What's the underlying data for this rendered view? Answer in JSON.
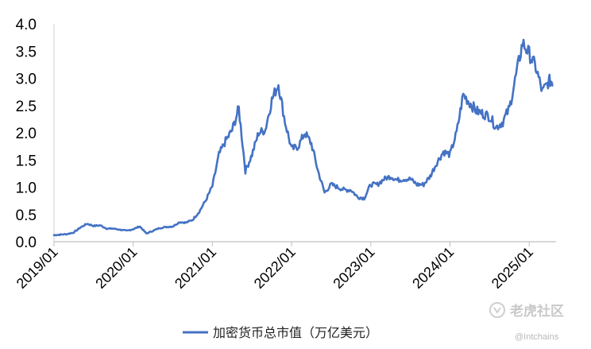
{
  "chart_data": {
    "type": "line",
    "title": "",
    "xlabel": "",
    "ylabel": "",
    "ylim": [
      0,
      4.0
    ],
    "yticks": [
      "0.0",
      "0.5",
      "1.0",
      "1.5",
      "2.0",
      "2.5",
      "3.0",
      "3.5",
      "4.0"
    ],
    "xticks": [
      "2019/01",
      "2020/01",
      "2021/01",
      "2022/01",
      "2023/01",
      "2024/01",
      "2025/01"
    ],
    "grid": false,
    "legend_position": "bottom",
    "series": [
      {
        "name": "加密货币总市值（万亿美元）",
        "color": "#4472c4",
        "x": [
          "2019-01",
          "2019-02",
          "2019-03",
          "2019-04",
          "2019-05",
          "2019-06",
          "2019-07",
          "2019-08",
          "2019-09",
          "2019-10",
          "2019-11",
          "2019-12",
          "2020-01",
          "2020-02",
          "2020-03",
          "2020-04",
          "2020-05",
          "2020-06",
          "2020-07",
          "2020-08",
          "2020-09",
          "2020-10",
          "2020-11",
          "2020-12",
          "2021-01",
          "2021-02",
          "2021-03",
          "2021-04",
          "2021-05",
          "2021-06",
          "2021-07",
          "2021-08",
          "2021-09",
          "2021-10",
          "2021-11",
          "2021-12",
          "2022-01",
          "2022-02",
          "2022-03",
          "2022-04",
          "2022-05",
          "2022-06",
          "2022-07",
          "2022-08",
          "2022-09",
          "2022-10",
          "2022-11",
          "2022-12",
          "2023-01",
          "2023-02",
          "2023-03",
          "2023-04",
          "2023-05",
          "2023-06",
          "2023-07",
          "2023-08",
          "2023-09",
          "2023-10",
          "2023-11",
          "2023-12",
          "2024-01",
          "2024-02",
          "2024-03",
          "2024-04",
          "2024-05",
          "2024-06",
          "2024-07",
          "2024-08",
          "2024-09",
          "2024-10",
          "2024-11",
          "2024-12",
          "2025-01",
          "2025-02",
          "2025-03",
          "2025-04"
        ],
        "values": [
          0.12,
          0.13,
          0.14,
          0.17,
          0.26,
          0.33,
          0.29,
          0.3,
          0.24,
          0.24,
          0.22,
          0.2,
          0.23,
          0.28,
          0.15,
          0.2,
          0.25,
          0.27,
          0.28,
          0.36,
          0.35,
          0.4,
          0.55,
          0.76,
          1.02,
          1.6,
          1.85,
          2.05,
          2.45,
          1.3,
          1.6,
          2.0,
          2.05,
          2.6,
          2.9,
          2.2,
          1.7,
          1.75,
          2.0,
          1.8,
          1.3,
          0.9,
          1.05,
          1.0,
          0.95,
          0.95,
          0.82,
          0.8,
          1.05,
          1.05,
          1.15,
          1.2,
          1.13,
          1.15,
          1.15,
          1.05,
          1.05,
          1.2,
          1.45,
          1.65,
          1.6,
          2.0,
          2.7,
          2.55,
          2.4,
          2.35,
          2.3,
          2.1,
          2.2,
          2.45,
          3.05,
          3.65,
          3.45,
          3.2,
          2.75,
          2.95
        ]
      }
    ]
  },
  "legend": {
    "label": "加密货币总市值（万亿美元）"
  },
  "watermark": {
    "brand": "老虎社区",
    "handle": "@Intchains"
  }
}
